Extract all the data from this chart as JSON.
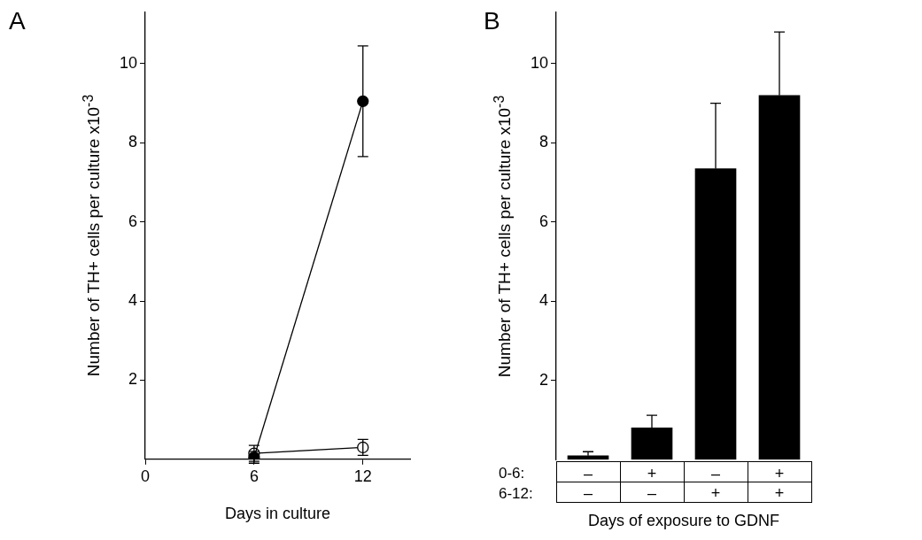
{
  "chart_data": [
    {
      "type": "line",
      "title": "A",
      "xlabel": "Days in culture",
      "ylabel": "Number of TH+ cells per culture x10$^{-3}$",
      "xlim": [
        0,
        14.6
      ],
      "xticks": [
        0,
        6,
        12
      ],
      "ylim": [
        0,
        11.3
      ],
      "yticks": [
        2,
        4,
        6,
        8,
        10
      ],
      "grid": false,
      "legend": false,
      "marker": "circle",
      "line_style": "solid",
      "x": [
        6,
        12
      ],
      "series": [
        {
          "color": "#000000",
          "values": [
            0.05,
            9.05
          ],
          "errors": [
            0.15,
            1.4
          ]
        },
        {
          "color": "#ffffff",
          "values": [
            0.15,
            0.3
          ],
          "errors": [
            0.2,
            0.2
          ]
        }
      ]
    },
    {
      "type": "bar",
      "title": "B",
      "xlabel": "Days of exposure to GDNF",
      "ylabel": "Number of TH+ cells per culture x10$^{-3}$",
      "ylim": [
        0,
        11.3
      ],
      "yticks": [
        2,
        4,
        6,
        8,
        10
      ],
      "grid": false,
      "legend": false,
      "categories": [
        "–\n–",
        "+\n–",
        "–\n+",
        "+\n+"
      ],
      "values": [
        0.1,
        0.8,
        7.35,
        9.2
      ],
      "color": "#000000",
      "errors": [
        [
          0.1,
          0.2
        ],
        [
          0.8,
          1.12
        ],
        [
          7.35,
          9.0
        ],
        [
          9.2,
          10.8
        ]
      ],
      "annotations": [
        "0-6:",
        "6-12:"
      ]
    }
  ]
}
